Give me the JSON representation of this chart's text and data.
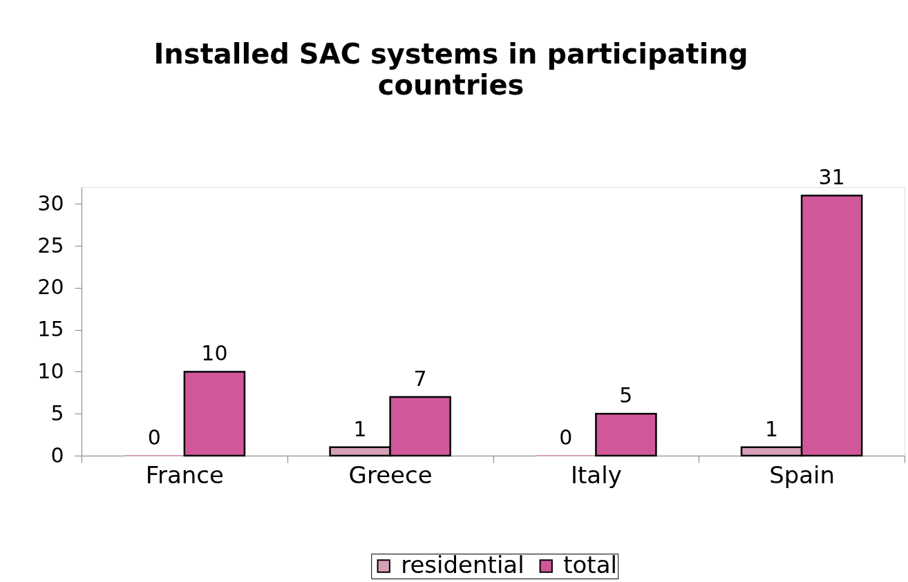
{
  "chart_data": {
    "type": "bar",
    "title": "Installed SAC systems in participating countries",
    "categories": [
      "France",
      "Greece",
      "Italy",
      "Spain"
    ],
    "series": [
      {
        "name": "residential",
        "color": "#d4a0b8",
        "values": [
          0,
          1,
          0,
          1
        ]
      },
      {
        "name": "total",
        "color": "#d0589a",
        "values": [
          10,
          7,
          5,
          31
        ]
      }
    ],
    "ylim": [
      0,
      32
    ],
    "yticks": [
      0,
      5,
      10,
      15,
      20,
      25,
      30
    ],
    "grid": false,
    "legend": "bottom",
    "data_labels": true
  }
}
